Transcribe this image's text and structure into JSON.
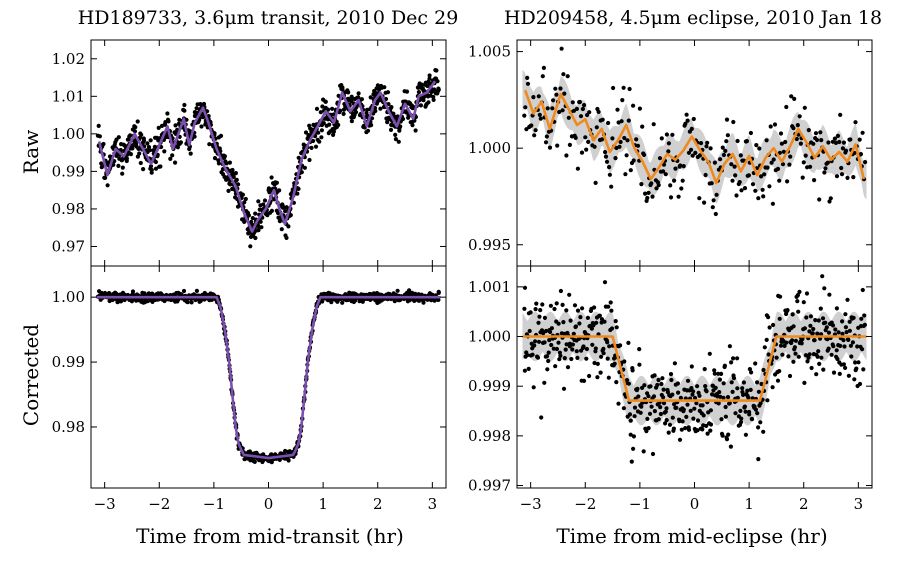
{
  "figure": {
    "title_left": "HD189733, 3.6μm transit, 2010 Dec 29",
    "title_right": "HD209458, 4.5μm eclipse, 2010 Jan 18",
    "ylabel_top": "Raw",
    "ylabel_bottom": "Corrected",
    "xlabel_left": "Time from mid-transit (hr)",
    "xlabel_right": "Time from mid-eclipse (hr)",
    "colors": {
      "purple": "#7b4fae",
      "orange": "#ee8a1f",
      "points": "#000000",
      "band": "#c8c8c8"
    }
  },
  "chart_data": [
    {
      "id": "left-top",
      "type": "scatter",
      "xlim": [
        -3.25,
        3.25
      ],
      "ylim": [
        0.9648,
        1.025
      ],
      "xticks": [
        -3,
        -2,
        -1,
        0,
        1,
        2,
        3
      ],
      "yticks": [
        0.97,
        0.98,
        0.99,
        1.0,
        1.01,
        1.02
      ],
      "ytick_labels": [
        "0.97",
        "0.98",
        "0.99",
        "1.00",
        "1.01",
        "1.02"
      ],
      "model_color": "#7b4fae",
      "model_x": [
        -3.1,
        -2.95,
        -2.8,
        -2.65,
        -2.45,
        -2.3,
        -2.15,
        -2.0,
        -1.85,
        -1.75,
        -1.55,
        -1.45,
        -1.35,
        -1.2,
        -1.1,
        -0.95,
        -0.8,
        -0.6,
        -0.45,
        -0.3,
        -0.2,
        -0.05,
        0.1,
        0.2,
        0.3,
        0.45,
        0.6,
        0.75,
        0.9,
        1.05,
        1.2,
        1.35,
        1.5,
        1.65,
        1.8,
        1.95,
        2.05,
        2.2,
        2.35,
        2.5,
        2.65,
        2.75,
        2.9,
        3.05
      ],
      "model_y": [
        0.998,
        0.989,
        0.996,
        0.994,
        1.0,
        0.996,
        0.992,
        0.997,
        1.002,
        0.996,
        1.004,
        0.997,
        1.003,
        1.007,
        1.003,
        0.996,
        0.991,
        0.986,
        0.979,
        0.974,
        0.977,
        0.98,
        0.985,
        0.98,
        0.976,
        0.983,
        0.993,
        0.998,
        1.002,
        1.006,
        1.003,
        1.011,
        1.006,
        1.009,
        1.002,
        1.009,
        1.011,
        1.006,
        1.002,
        1.008,
        1.004,
        1.01,
        1.011,
        1.014
      ],
      "scatter_sigma": 0.0022,
      "n_points": 900
    },
    {
      "id": "right-top",
      "type": "scatter",
      "xlim": [
        -3.25,
        3.25
      ],
      "ylim": [
        0.9939,
        1.0056
      ],
      "xticks": [
        -3,
        -2,
        -1,
        0,
        1,
        2,
        3
      ],
      "yticks": [
        0.995,
        1.0,
        1.005
      ],
      "ytick_labels": [
        "0.995",
        "1.000",
        "1.005"
      ],
      "model_color": "#ee8a1f",
      "model_x": [
        -3.1,
        -2.95,
        -2.8,
        -2.65,
        -2.45,
        -2.3,
        -2.15,
        -2.0,
        -1.85,
        -1.7,
        -1.55,
        -1.4,
        -1.25,
        -1.1,
        -0.95,
        -0.8,
        -0.65,
        -0.5,
        -0.35,
        -0.2,
        -0.05,
        0.1,
        0.25,
        0.4,
        0.55,
        0.7,
        0.85,
        1.0,
        1.15,
        1.3,
        1.45,
        1.6,
        1.75,
        1.9,
        2.05,
        2.2,
        2.35,
        2.5,
        2.65,
        2.8,
        2.95,
        3.1
      ],
      "model_y": [
        1.003,
        1.0018,
        1.0024,
        1.001,
        1.0028,
        1.002,
        1.0012,
        1.0015,
        1.0004,
        1.001,
        0.9998,
        1.0004,
        1.0012,
        1.0,
        0.9993,
        0.9984,
        0.999,
        0.9997,
        0.9994,
        0.9999,
        1.0006,
        0.9999,
        0.9993,
        0.9982,
        0.9992,
        0.9997,
        0.9988,
        0.9996,
        0.9986,
        0.9995,
        1.0,
        0.9993,
        1.0001,
        1.001,
        1.0003,
        0.9995,
        1.0001,
        0.9994,
        0.9998,
        0.9993,
        1.0002,
        0.9984
      ],
      "band_halfwidth": 0.0009,
      "scatter_sigma": 0.0011,
      "n_points": 330
    },
    {
      "id": "left-bottom",
      "type": "scatter",
      "xlim": [
        -3.25,
        3.25
      ],
      "ylim": [
        0.9706,
        1.0048
      ],
      "xticks": [
        -3,
        -2,
        -1,
        0,
        1,
        2,
        3
      ],
      "xtick_labels": [
        "−3",
        "−2",
        "−1",
        "0",
        "1",
        "2",
        "3"
      ],
      "yticks": [
        0.98,
        0.99,
        1.0
      ],
      "ytick_labels": [
        "0.98",
        "0.99",
        "1.00"
      ],
      "model_color": "#7b4fae",
      "model_x": [
        -3.15,
        -0.95,
        -0.88,
        -0.8,
        -0.72,
        -0.65,
        -0.6,
        -0.55,
        -0.5,
        -0.45,
        0.0,
        0.45,
        0.5,
        0.55,
        0.6,
        0.65,
        0.72,
        0.8,
        0.88,
        0.95,
        3.15
      ],
      "model_y": [
        1.0,
        1.0,
        0.9985,
        0.995,
        0.99,
        0.984,
        0.98,
        0.9775,
        0.9765,
        0.9757,
        0.9752,
        0.9757,
        0.9765,
        0.9775,
        0.98,
        0.984,
        0.99,
        0.995,
        0.9985,
        1.0,
        1.0
      ],
      "scatter_sigma": 0.00035,
      "n_points": 900
    },
    {
      "id": "right-bottom",
      "type": "scatter",
      "xlim": [
        -3.25,
        3.25
      ],
      "ylim": [
        0.99695,
        1.00142
      ],
      "xticks": [
        -3,
        -2,
        -1,
        0,
        1,
        2,
        3
      ],
      "xtick_labels": [
        "−3",
        "−2",
        "−1",
        "0",
        "1",
        "2",
        "3"
      ],
      "yticks": [
        0.997,
        0.998,
        0.999,
        1.0,
        1.001
      ],
      "ytick_labels": [
        "0.997",
        "0.998",
        "0.999",
        "1.000",
        "1.001"
      ],
      "model_color": "#ee8a1f",
      "model_x": [
        -3.15,
        -1.5,
        -1.2,
        1.2,
        1.5,
        3.15
      ],
      "model_y": [
        1.0,
        1.0,
        0.99871,
        0.99871,
        1.0,
        1.0
      ],
      "band_halfwidth": 0.0004,
      "scatter_sigma": 0.00045,
      "n_points": 600
    }
  ]
}
